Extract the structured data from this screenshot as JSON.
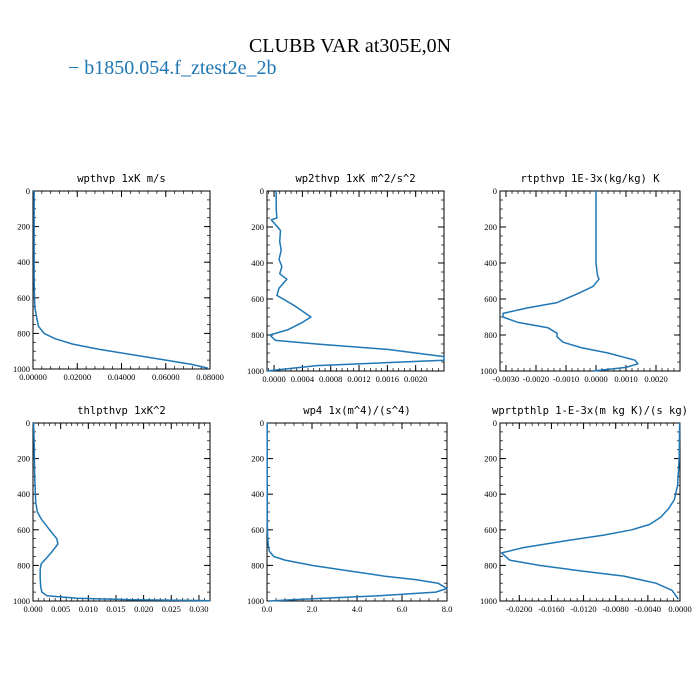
{
  "title": "CLUBB VAR at305E,0N",
  "legend": {
    "label": "b1850.054.f_ztest2e_2b",
    "color": "#1f77b4"
  },
  "chart_data": [
    {
      "type": "line",
      "title": "wpthvp  1xK m/s",
      "xlim": [
        0,
        0.08
      ],
      "ylim": [
        1000,
        0
      ],
      "xticks": [
        0,
        0.02,
        0.04,
        0.06,
        0.08
      ],
      "xtick_labels": [
        "0.00000",
        "0.02000",
        "0.04000",
        "0.06000",
        "0.08000"
      ],
      "yticks": [
        0,
        200,
        400,
        600,
        800,
        1000
      ],
      "series": [
        {
          "color": "#1f77b4",
          "x": [
            0.0005,
            0.0005,
            0.0005,
            0.0008,
            0.0015,
            0.0025,
            0.005,
            0.01,
            0.018,
            0.03,
            0.045,
            0.06,
            0.072,
            0.079
          ],
          "y": [
            0,
            200,
            500,
            650,
            700,
            760,
            800,
            830,
            860,
            890,
            920,
            950,
            975,
            995
          ]
        }
      ]
    },
    {
      "type": "line",
      "title": "wp2thvp  1xK m^2/s^2",
      "xlim": [
        -0.0001,
        0.0024
      ],
      "ylim": [
        1000,
        0
      ],
      "xticks": [
        0,
        0.0004,
        0.0008,
        0.0012,
        0.0016,
        0.002
      ],
      "xtick_labels": [
        "0.0000",
        "0.0004",
        "0.0008",
        "0.0012",
        "0.0016",
        "0.0020"
      ],
      "yticks": [
        0,
        200,
        400,
        600,
        800,
        1000
      ],
      "series": [
        {
          "color": "#1f77b4",
          "x": [
            3e-05,
            3e-05,
            4e-05,
            -4e-05,
            5e-05,
            9e-05,
            8e-05,
            0.0001,
            7e-05,
            0.00011,
            8e-05,
            0.00018,
            7e-05,
            4e-05,
            0.0003,
            0.00052,
            0.0004,
            0.0002,
            -6e-05,
            2e-05,
            0.0006,
            0.0016,
            0.0024,
            0.0024,
            0.0006,
            -0.0001
          ],
          "y": [
            0,
            100,
            150,
            160,
            200,
            220,
            280,
            330,
            380,
            420,
            460,
            490,
            540,
            580,
            640,
            700,
            730,
            770,
            800,
            830,
            850,
            880,
            920,
            940,
            970,
            1000
          ]
        }
      ]
    },
    {
      "type": "line",
      "title": "rtpthvp  1E-3x(kg/kg) K",
      "xlim": [
        -0.0032,
        0.0028
      ],
      "ylim": [
        1000,
        0
      ],
      "xticks": [
        -0.003,
        -0.002,
        -0.001,
        0,
        0.001,
        0.002
      ],
      "xtick_labels": [
        "-0.0030",
        "-0.0020",
        "-0.0010",
        "0.0000",
        "0.0010",
        "0.0020"
      ],
      "yticks": [
        0,
        200,
        400,
        600,
        800,
        1000
      ],
      "series": [
        {
          "color": "#1f77b4",
          "x": [
            0.0,
            0.0,
            0.0,
            5e-05,
            0.0001,
            -0.0001,
            -0.0006,
            -0.0013,
            -0.0023,
            -0.0031,
            -0.0031,
            -0.0026,
            -0.0016,
            -0.0013,
            -0.0013,
            -0.0011,
            -0.0005,
            0.0004,
            0.0013,
            0.0014,
            0.001,
            -0.0001
          ],
          "y": [
            0,
            200,
            400,
            470,
            490,
            530,
            570,
            620,
            650,
            680,
            700,
            730,
            760,
            790,
            810,
            840,
            870,
            900,
            940,
            960,
            980,
            1000
          ]
        }
      ]
    },
    {
      "type": "line",
      "title": "thlpthvp  1xK^2",
      "xlim": [
        0,
        0.032
      ],
      "ylim": [
        1000,
        0
      ],
      "xticks": [
        0,
        0.005,
        0.01,
        0.015,
        0.02,
        0.025,
        0.03
      ],
      "xtick_labels": [
        "0.000",
        "0.005",
        "0.010",
        "0.015",
        "0.020",
        "0.025",
        "0.030"
      ],
      "yticks": [
        0,
        200,
        400,
        600,
        800,
        1000
      ],
      "series": [
        {
          "color": "#1f77b4",
          "x": [
            0.0001,
            0.0002,
            0.0003,
            0.0005,
            0.0008,
            0.0015,
            0.0025,
            0.0035,
            0.0043,
            0.0045,
            0.0035,
            0.0024,
            0.0015,
            0.0013,
            0.0013,
            0.0014,
            0.0016,
            0.0025,
            0.008,
            0.018,
            0.03,
            0.032
          ],
          "y": [
            0,
            100,
            300,
            450,
            500,
            540,
            580,
            620,
            650,
            680,
            720,
            760,
            790,
            820,
            870,
            920,
            950,
            970,
            985,
            993,
            997,
            999
          ]
        }
      ]
    },
    {
      "type": "line",
      "title": "wp4  1x(m^4)/(s^4)",
      "xlim": [
        0,
        8.0
      ],
      "ylim": [
        1000,
        0
      ],
      "xticks": [
        0,
        2,
        4,
        6,
        8
      ],
      "xtick_labels": [
        "0.0",
        "2.0",
        "4.0",
        "6.0",
        "8.0"
      ],
      "yticks": [
        0,
        200,
        400,
        600,
        800,
        1000
      ],
      "series": [
        {
          "color": "#1f77b4",
          "x": [
            0.01,
            0.01,
            0.02,
            0.05,
            0.1,
            0.3,
            0.8,
            2.0,
            3.6,
            5.2,
            6.6,
            7.6,
            8.0,
            7.5,
            5.0,
            2.5,
            0.8,
            0.1
          ],
          "y": [
            0,
            300,
            600,
            680,
            720,
            750,
            770,
            800,
            830,
            860,
            880,
            900,
            930,
            950,
            970,
            985,
            995,
            1000
          ]
        }
      ]
    },
    {
      "type": "line",
      "title": "wprtpthlp  1-E-3x(m kg K)/(s kg)",
      "xlim": [
        -0.0224,
        0
      ],
      "ylim": [
        1000,
        0
      ],
      "xticks": [
        -0.02,
        -0.016,
        -0.012,
        -0.008,
        -0.004,
        0
      ],
      "xtick_labels": [
        "-0.0200",
        "-0.0160",
        "-0.0120",
        "-0.0080",
        "-0.0040",
        "0.0000"
      ],
      "yticks": [
        0,
        200,
        400,
        600,
        800,
        1000
      ],
      "series": [
        {
          "color": "#1f77b4",
          "x": [
            -5e-05,
            -0.0001,
            -0.0003,
            -0.0007,
            -0.0014,
            -0.0024,
            -0.0038,
            -0.006,
            -0.0095,
            -0.014,
            -0.0195,
            -0.0222,
            -0.0212,
            -0.0175,
            -0.0125,
            -0.007,
            -0.003,
            -0.001,
            -0.0002
          ],
          "y": [
            0,
            200,
            350,
            430,
            480,
            530,
            570,
            600,
            630,
            660,
            700,
            730,
            770,
            800,
            830,
            860,
            900,
            940,
            990
          ]
        }
      ]
    }
  ]
}
